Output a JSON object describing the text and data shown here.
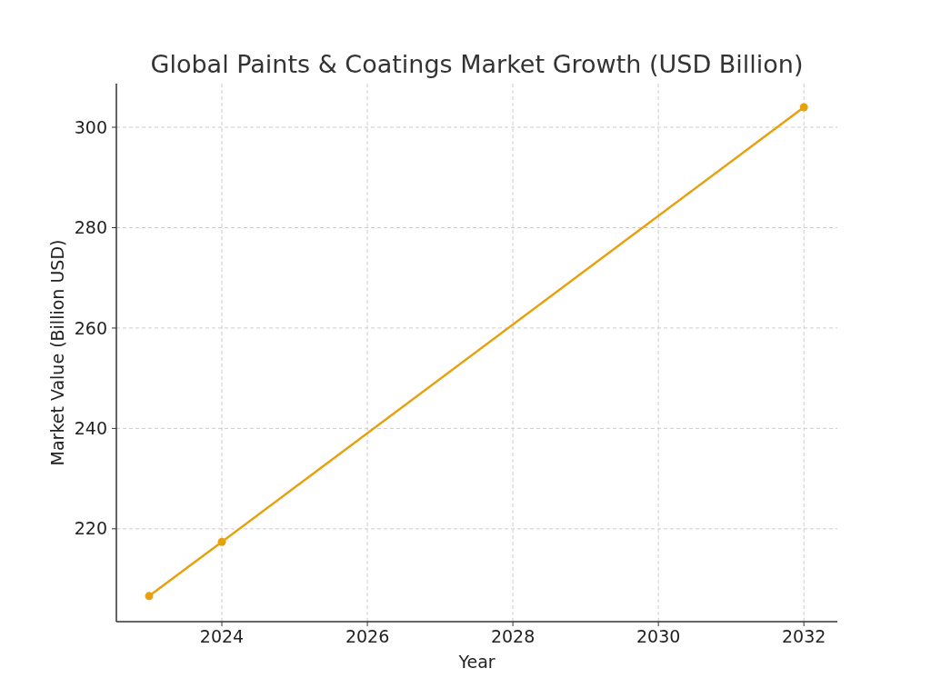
{
  "chart_data": {
    "type": "line",
    "title": "Global Paints & Coatings Market Growth (USD Billion)",
    "xlabel": "Year",
    "ylabel": "Market Value (Billion USD)",
    "x": [
      2023,
      2024,
      2032
    ],
    "series": [
      {
        "color": "#e8a10e",
        "values": [
          206.6,
          217.4,
          304
        ]
      }
    ],
    "xlim": [
      2022.55,
      2032.46
    ],
    "xticks": [
      2024,
      2026,
      2028,
      2030,
      2032
    ],
    "ylim": [
      201.5,
      308.7
    ],
    "yticks": [
      220,
      240,
      260,
      280,
      300
    ],
    "grid": true,
    "marker": "circle",
    "line_style": "solid"
  }
}
